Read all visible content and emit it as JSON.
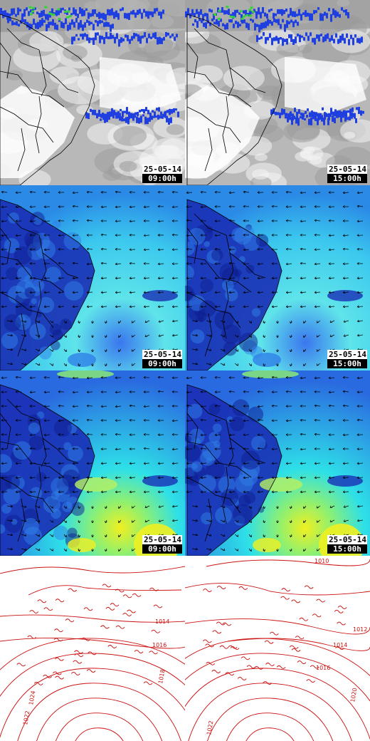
{
  "panels": [
    {
      "id": "sat-0900",
      "layer": "satellite",
      "date": "25-05-14",
      "time": "09:00h"
    },
    {
      "id": "sat-1500",
      "layer": "satellite",
      "date": "25-05-14",
      "time": "15:00h"
    },
    {
      "id": "wind-low-0900",
      "layer": "wind-level-1",
      "date": "25-05-14",
      "time": "09:00h"
    },
    {
      "id": "wind-low-1500",
      "layer": "wind-level-1",
      "date": "25-05-14",
      "time": "15:00h"
    },
    {
      "id": "wind-high-0900",
      "layer": "wind-level-2",
      "date": "25-05-14",
      "time": "09:00h"
    },
    {
      "id": "wind-high-1500",
      "layer": "wind-level-2",
      "date": "25-05-14",
      "time": "15:00h"
    },
    {
      "id": "pressure-0900",
      "layer": "isobars",
      "isobar_labels": [
        "1014",
        "1016",
        "1018",
        "1022",
        "1024"
      ]
    },
    {
      "id": "pressure-1500",
      "layer": "isobars",
      "isobar_labels": [
        "1010",
        "1012",
        "1014",
        "1016",
        "1020",
        "1022"
      ]
    }
  ],
  "colors": {
    "cloud_light": "#e0e0e0",
    "cloud_dark": "#8a8a8a",
    "precip_blue": "#1f3fe0",
    "precip_green": "#36d23a",
    "wind_dark": "#1a2fb5",
    "wind_mid": "#2f7fe8",
    "wind_cyan": "#2ee0e8",
    "wind_aqua": "#6ff0c0",
    "wind_yellow": "#f0f020",
    "isobar_red": "#cc1111",
    "border_black": "#000000"
  }
}
